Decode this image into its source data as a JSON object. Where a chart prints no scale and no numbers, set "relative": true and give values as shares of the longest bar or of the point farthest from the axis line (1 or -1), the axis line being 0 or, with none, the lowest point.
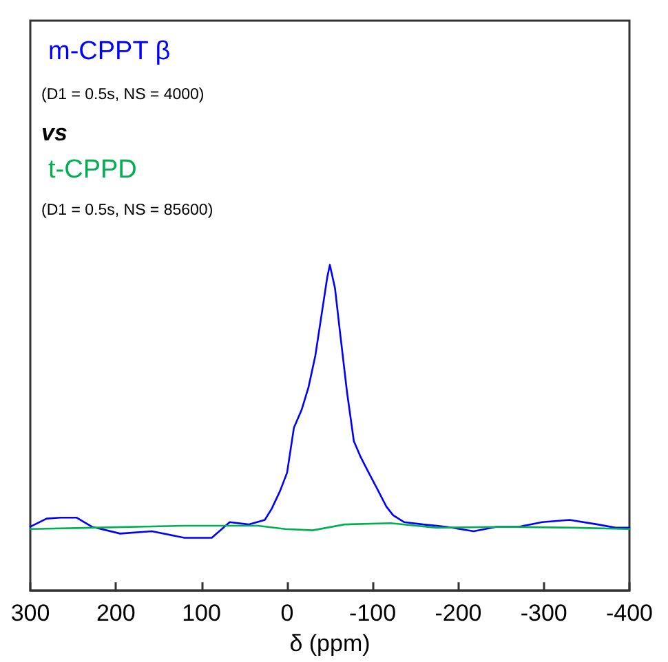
{
  "chart_data": {
    "type": "line",
    "relative": true,
    "xlabel": "δ (ppm)",
    "xlim": [
      300,
      -400
    ],
    "xticks": [
      300,
      200,
      100,
      0,
      -100,
      -200,
      -300,
      -400
    ],
    "tick_labels": "x",
    "grid": false,
    "legend": "top left",
    "marker": "none",
    "line_style": "solid",
    "annotations": [
      "(D1 = 0.5s, NS = 4000)",
      "vs",
      "(D1 = 0.5s, NS = 85600)"
    ],
    "series": [
      {
        "name": "m-CPPT β",
        "color": "#0000ff",
        "x": [
          300,
          281,
          265,
          246,
          228,
          195,
          158,
          120,
          88,
          67,
          45,
          26,
          18,
          8,
          0,
          -8,
          -17,
          -25,
          -33,
          -41,
          -47,
          -50,
          -56,
          -62,
          -70,
          -78,
          -86,
          -94,
          -105,
          -116,
          -124,
          -137,
          -159,
          -186,
          -218,
          -245,
          -271,
          -298,
          -330,
          -363,
          -384,
          -400
        ],
        "values": [
          0.196,
          0.221,
          0.224,
          0.224,
          0.196,
          0.175,
          0.182,
          0.162,
          0.162,
          0.21,
          0.203,
          0.217,
          0.251,
          0.307,
          0.362,
          0.5,
          0.555,
          0.624,
          0.721,
          0.859,
          0.963,
          1.0,
          0.928,
          0.79,
          0.61,
          0.459,
          0.41,
          0.369,
          0.314,
          0.258,
          0.231,
          0.21,
          0.203,
          0.196,
          0.182,
          0.196,
          0.196,
          0.21,
          0.217,
          0.203,
          0.193,
          0.193
        ]
      },
      {
        "name": "t-CPPD",
        "color": "#00b050",
        "x": [
          300,
          228,
          120,
          34,
          2,
          -30,
          -67,
          -121,
          -175,
          -255,
          -336,
          -400
        ],
        "values": [
          0.189,
          0.193,
          0.199,
          0.199,
          0.189,
          0.185,
          0.203,
          0.207,
          0.193,
          0.196,
          0.193,
          0.189
        ]
      }
    ]
  }
}
